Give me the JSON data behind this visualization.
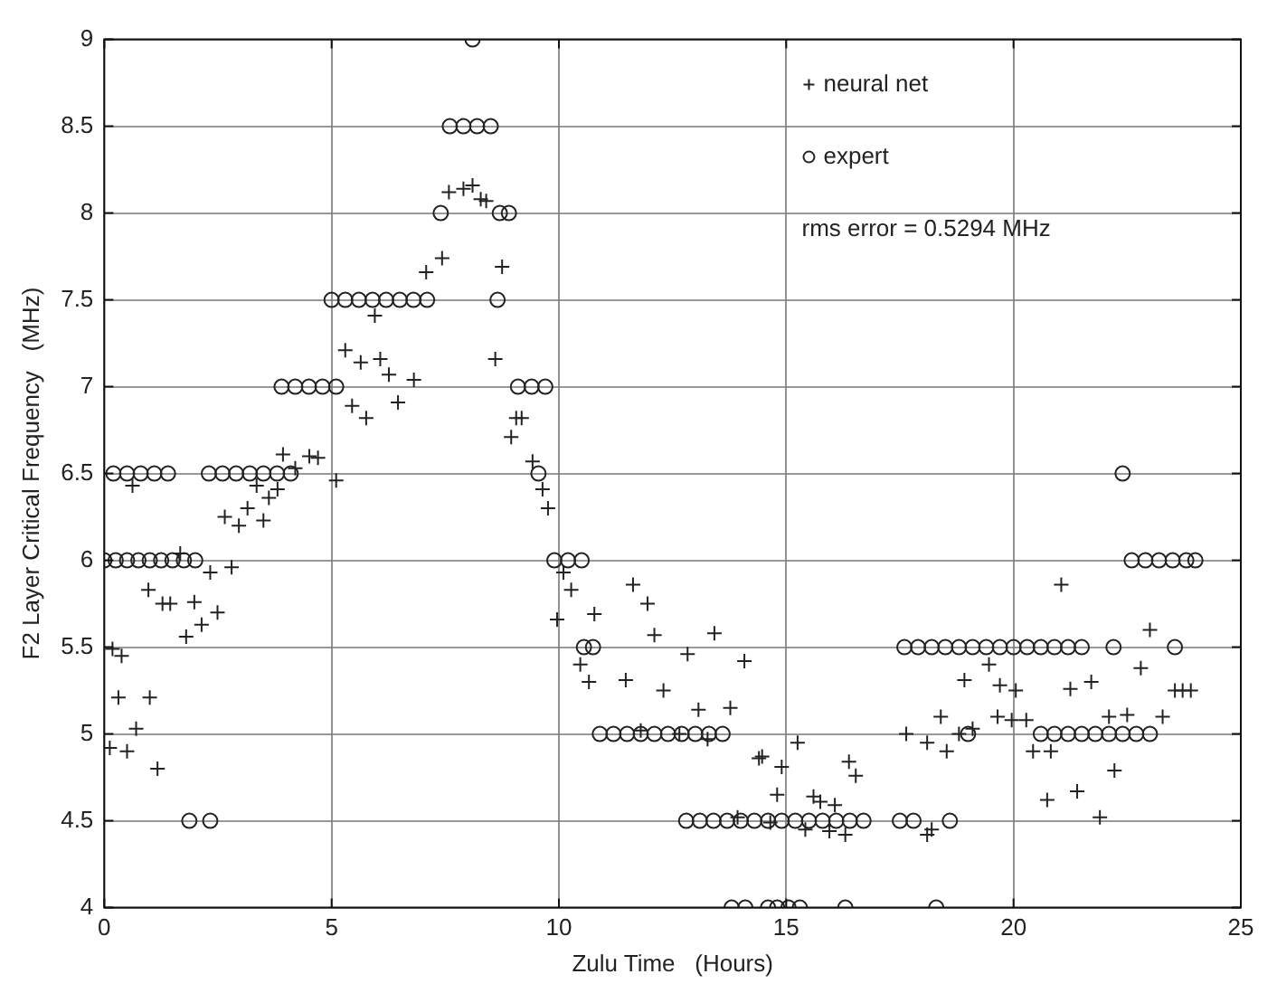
{
  "chart_data": {
    "type": "scatter",
    "xlabel": "Zulu Time   (Hours)",
    "ylabel": "F2 Layer Critical Frequency   (MHz)",
    "xlim": [
      0,
      25
    ],
    "ylim": [
      4,
      9
    ],
    "xticks": [
      0,
      5,
      10,
      15,
      20,
      25
    ],
    "yticks": [
      4,
      4.5,
      5,
      5.5,
      6,
      6.5,
      7,
      7.5,
      8,
      8.5,
      9
    ],
    "grid": true,
    "legend": "top right",
    "annotations": [
      "rms error = 0.5294 MHz"
    ],
    "series": [
      {
        "name": "neural net",
        "color": "#222222",
        "marker": "cross",
        "x": [
          0.18,
          0.38,
          0.31,
          0.12,
          0.5,
          0.7,
          1.0,
          1.17,
          0.97,
          1.28,
          1.45,
          1.8,
          1.98,
          2.14,
          2.49,
          2.33,
          2.8,
          0.62,
          1.67,
          2.65,
          2.96,
          3.15,
          3.5,
          3.35,
          3.62,
          3.81,
          3.93,
          4.2,
          4.51,
          4.7,
          5.1,
          5.3,
          5.64,
          5.45,
          5.76,
          6.07,
          6.26,
          6.46,
          6.81,
          5.95,
          7.08,
          7.43,
          7.58,
          7.9,
          8.1,
          8.28,
          8.4,
          8.75,
          8.6,
          9.06,
          9.18,
          8.95,
          9.42,
          9.64,
          9.76,
          10.1,
          10.27,
          9.96,
          10.78,
          10.47,
          10.66,
          11.47,
          11.63,
          11.95,
          12.1,
          12.3,
          12.83,
          13.42,
          14.08,
          13.07,
          13.77,
          11.8,
          12.65,
          13.27,
          14.4,
          13.93,
          15.25,
          14.47,
          14.9,
          16.38,
          16.53,
          14.8,
          15.6,
          15.75,
          16.07,
          14.65,
          15.42,
          15.95,
          16.3,
          18.2,
          18.1,
          17.64,
          18.1,
          18.4,
          18.53,
          18.8,
          19.1,
          18.92,
          19.46,
          19.7,
          20.05,
          19.65,
          19.96,
          20.28,
          20.43,
          20.82,
          20.74,
          21.4,
          21.9,
          22.22,
          21.25,
          21.71,
          21.05,
          22.1,
          22.5,
          22.8,
          23.0,
          23.28,
          23.55,
          23.72,
          23.9
        ],
        "values": [
          5.49,
          5.45,
          5.21,
          4.92,
          4.9,
          5.03,
          5.21,
          4.8,
          5.83,
          5.75,
          5.75,
          5.56,
          5.76,
          5.63,
          5.7,
          5.93,
          5.96,
          6.43,
          6.04,
          6.25,
          6.2,
          6.3,
          6.23,
          6.43,
          6.36,
          6.41,
          6.61,
          6.53,
          6.6,
          6.59,
          6.46,
          7.21,
          7.14,
          6.89,
          6.82,
          7.16,
          7.07,
          6.91,
          7.04,
          7.41,
          7.66,
          7.74,
          8.12,
          8.14,
          8.16,
          8.08,
          8.07,
          7.69,
          7.16,
          6.82,
          6.82,
          6.71,
          6.57,
          6.41,
          6.3,
          5.93,
          5.83,
          5.66,
          5.69,
          5.4,
          5.3,
          5.31,
          5.86,
          5.75,
          5.57,
          5.25,
          5.46,
          5.58,
          5.42,
          5.14,
          5.15,
          5.02,
          5.0,
          4.97,
          4.86,
          4.52,
          4.95,
          4.87,
          4.81,
          4.84,
          4.76,
          4.65,
          4.64,
          4.61,
          4.59,
          4.49,
          4.45,
          4.44,
          4.42,
          4.45,
          4.42,
          5.0,
          4.95,
          5.1,
          4.9,
          5.0,
          5.03,
          5.31,
          5.4,
          5.28,
          5.25,
          5.1,
          5.08,
          5.08,
          4.9,
          4.9,
          4.62,
          4.67,
          4.52,
          4.79,
          5.26,
          5.3,
          5.86,
          5.1,
          5.11,
          5.38,
          5.6,
          5.1,
          5.25,
          5.25,
          5.25
        ]
      },
      {
        "name": "expert",
        "color": "#222222",
        "marker": "circle",
        "x": [
          0,
          0.25,
          0.5,
          0.75,
          1.0,
          1.25,
          1.5,
          1.75,
          2.0,
          0.2,
          0.5,
          0.8,
          1.1,
          1.4,
          1.87,
          2.33,
          2.3,
          2.6,
          2.9,
          3.2,
          3.5,
          3.8,
          4.1,
          3.9,
          4.2,
          4.5,
          4.8,
          5.1,
          5.0,
          5.3,
          5.6,
          5.9,
          6.2,
          6.5,
          6.8,
          7.1,
          7.4,
          7.6,
          7.9,
          8.2,
          8.5,
          8.1,
          8.7,
          8.9,
          8.65,
          9.1,
          9.4,
          9.7,
          9.55,
          9.9,
          10.2,
          10.5,
          10.55,
          10.75,
          10.9,
          11.2,
          11.5,
          11.8,
          12.1,
          12.4,
          12.7,
          13.0,
          13.3,
          13.6,
          12.8,
          13.1,
          13.4,
          13.7,
          14.0,
          14.3,
          14.6,
          14.9,
          15.2,
          15.5,
          15.8,
          16.1,
          16.4,
          16.7,
          17.5,
          17.8,
          18.6,
          13.8,
          14.1,
          14.6,
          14.8,
          15.05,
          15.3,
          16.3,
          18.3,
          17.6,
          17.9,
          18.2,
          18.5,
          18.8,
          19.1,
          19.4,
          19.7,
          20.0,
          20.3,
          20.6,
          20.9,
          21.2,
          21.5,
          22.2,
          23.55,
          19.0,
          20.6,
          20.9,
          21.2,
          21.5,
          21.8,
          22.1,
          22.4,
          22.7,
          23.0,
          22.4,
          22.6,
          22.9,
          23.2,
          23.5,
          23.8,
          24.0
        ],
        "values": [
          6,
          6,
          6,
          6,
          6,
          6,
          6,
          6,
          6,
          6.5,
          6.5,
          6.5,
          6.5,
          6.5,
          4.5,
          4.5,
          6.5,
          6.5,
          6.5,
          6.5,
          6.5,
          6.5,
          6.5,
          7,
          7,
          7,
          7,
          7,
          7.5,
          7.5,
          7.5,
          7.5,
          7.5,
          7.5,
          7.5,
          7.5,
          8,
          8.5,
          8.5,
          8.5,
          8.5,
          9,
          8,
          8,
          7.5,
          7,
          7,
          7,
          6.5,
          6,
          6,
          6,
          5.5,
          5.5,
          5,
          5,
          5,
          5,
          5,
          5,
          5,
          5,
          5,
          5,
          4.5,
          4.5,
          4.5,
          4.5,
          4.5,
          4.5,
          4.5,
          4.5,
          4.5,
          4.5,
          4.5,
          4.5,
          4.5,
          4.5,
          4.5,
          4.5,
          4.5,
          4,
          4,
          4,
          4,
          4,
          4,
          4,
          4,
          5.5,
          5.5,
          5.5,
          5.5,
          5.5,
          5.5,
          5.5,
          5.5,
          5.5,
          5.5,
          5.5,
          5.5,
          5.5,
          5.5,
          5.5,
          5.5,
          5,
          5,
          5,
          5,
          5,
          5,
          5,
          5,
          5,
          5,
          6.5,
          6,
          6,
          6,
          6,
          6,
          6
        ]
      }
    ]
  }
}
